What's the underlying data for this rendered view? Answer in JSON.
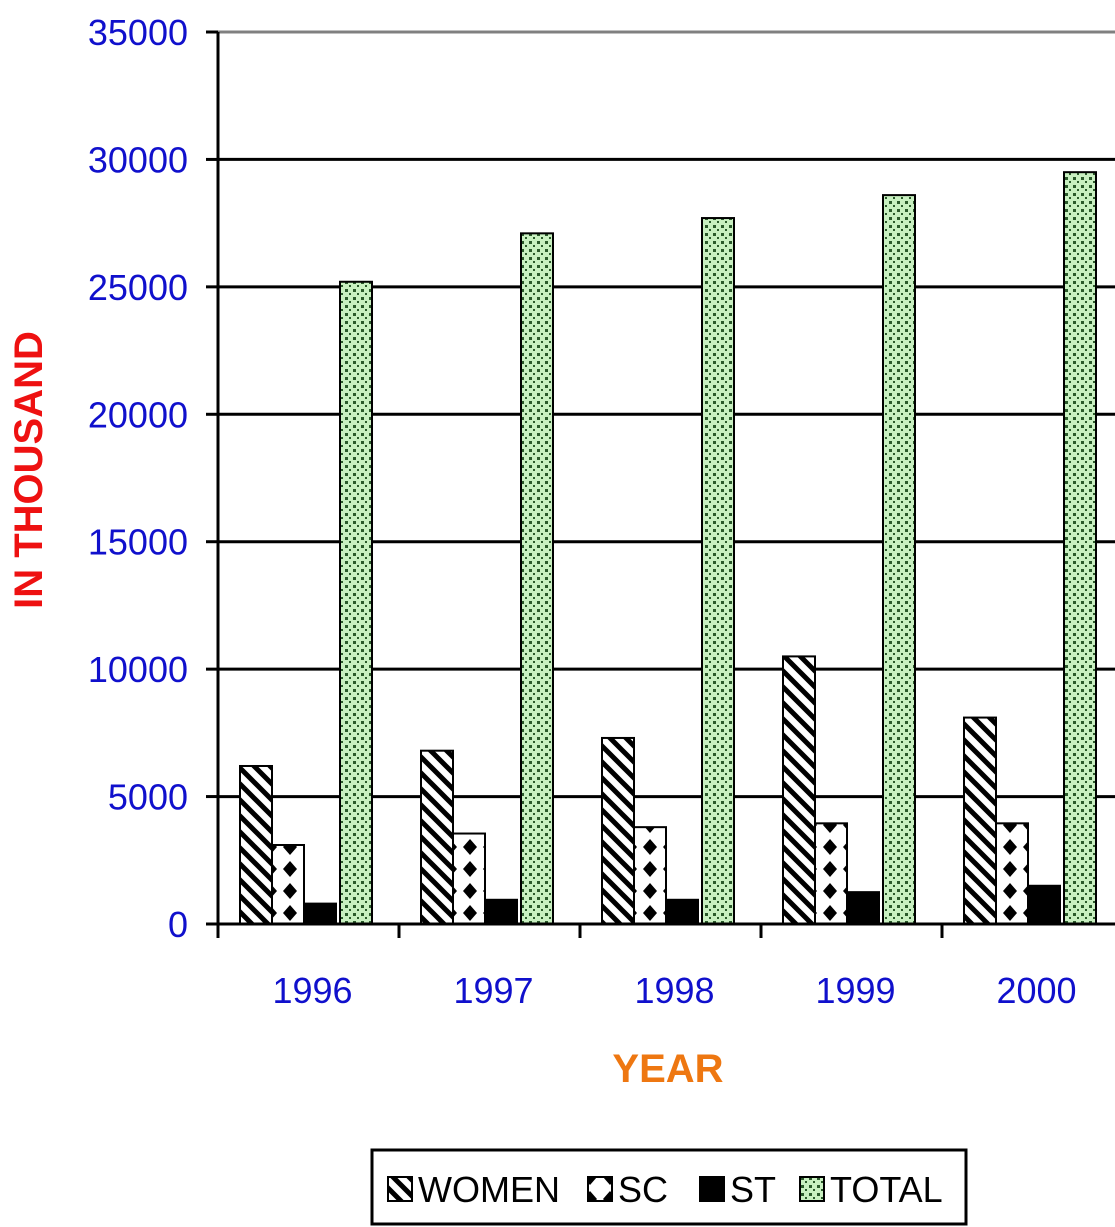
{
  "chart_data": {
    "type": "bar",
    "title": "",
    "xlabel": "YEAR",
    "ylabel": "IN THOUSAND",
    "ylim": [
      0,
      35000
    ],
    "yticks": [
      "0",
      "5000",
      "10000",
      "15000",
      "20000",
      "25000",
      "30000",
      "35000"
    ],
    "categories": [
      "1996",
      "1997",
      "1998",
      "1999",
      "2000"
    ],
    "series": [
      {
        "name": "WOMEN",
        "pattern": "diagonal-stripes",
        "values": [
          6200,
          6800,
          7300,
          10500,
          8100
        ]
      },
      {
        "name": "SC",
        "pattern": "diamonds",
        "values": [
          3100,
          3550,
          3800,
          3950,
          3950
        ]
      },
      {
        "name": "ST",
        "pattern": "solid",
        "values": [
          800,
          950,
          950,
          1250,
          1500
        ]
      },
      {
        "name": "TOTAL",
        "pattern": "green-dots",
        "values": [
          25200,
          27100,
          27700,
          28600,
          29500
        ]
      }
    ],
    "grid": true,
    "legend_position": "bottom-center",
    "colors": {
      "tick_labels": "#1010cc",
      "ylabel": "#ee1111",
      "xlabel": "#ee7711",
      "total_fill": "#c8f0c0",
      "grid": "#000000"
    }
  }
}
